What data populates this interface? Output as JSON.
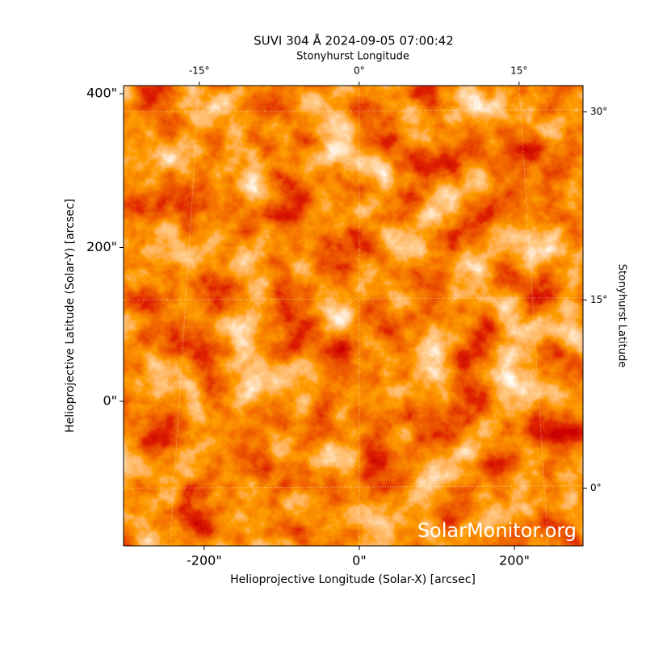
{
  "chart_data": {
    "type": "image",
    "title": "SUVI 304 Å 2024-09-05 07:00:42",
    "x_label": "Helioprojective Longitude (Solar-X) [arcsec]",
    "y_label": "Helioprojective Latitude (Solar-Y) [arcsec]",
    "x2_label": "Stonyhurst Longitude",
    "y2_label": "Stonyhurst Latitude",
    "watermark": "SolarMonitor.org",
    "xlim": [
      -304,
      288.5
    ],
    "ylim": [
      -188,
      410.5
    ],
    "xticks": [
      {
        "value": -200,
        "label": "-200\""
      },
      {
        "value": 0,
        "label": "0\""
      },
      {
        "value": 200,
        "label": "200\""
      }
    ],
    "yticks": [
      {
        "value": 0,
        "label": "0\""
      },
      {
        "value": 200,
        "label": "200\""
      },
      {
        "value": 400,
        "label": "400\""
      }
    ],
    "x2lim": [
      -22.1,
      21
    ],
    "x2ticks": [
      {
        "value": -15,
        "label": "-15°"
      },
      {
        "value": 0,
        "label": "0°"
      },
      {
        "value": 15,
        "label": "15°"
      }
    ],
    "y2lim": [
      -4.6,
      32.1
    ],
    "y2ticks": [
      {
        "value": 0,
        "label": "0°"
      },
      {
        "value": 15,
        "label": "15°"
      },
      {
        "value": 30,
        "label": "30°"
      }
    ],
    "grid": true
  }
}
